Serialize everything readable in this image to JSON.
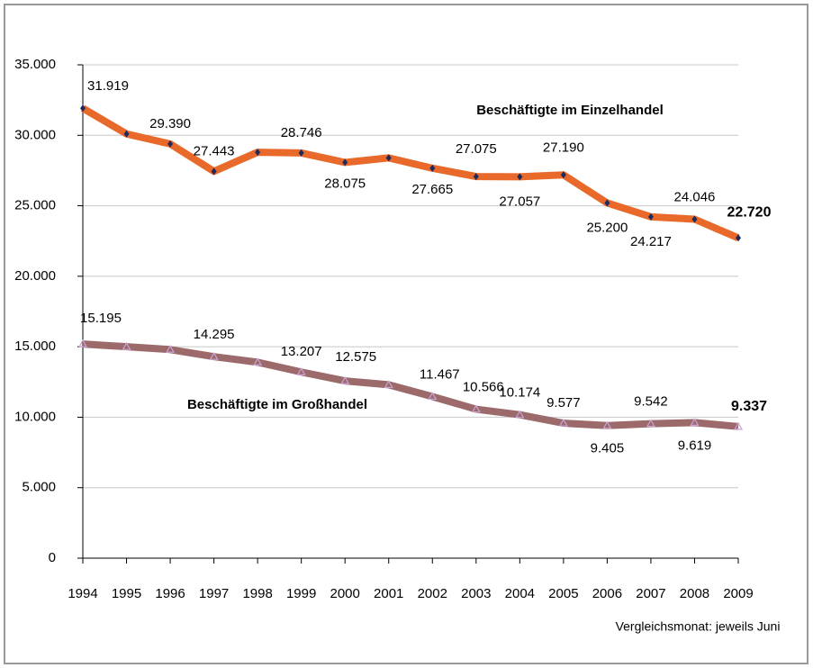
{
  "chart_data": {
    "type": "line",
    "x": [
      "1994",
      "1995",
      "1996",
      "1997",
      "1998",
      "1999",
      "2000",
      "2001",
      "2002",
      "2003",
      "2004",
      "2005",
      "2006",
      "2007",
      "2008",
      "2009"
    ],
    "series": [
      {
        "name": "Beschäftigte im Einzelhandel",
        "color": "#e8692a",
        "marker_color": "#1f2a5c",
        "values": [
          31919,
          30100,
          29390,
          27443,
          28800,
          28746,
          28075,
          28400,
          27665,
          27075,
          27057,
          27190,
          25200,
          24217,
          24046,
          22720
        ],
        "value_labels": [
          "31.919",
          null,
          "29.390",
          "27.443",
          null,
          "28.746",
          "28.075",
          null,
          "27.665",
          "27.075",
          "27.057",
          "27.190",
          "25.200",
          "24.217",
          "24.046",
          "22.720"
        ]
      },
      {
        "name": "Beschäftigte im Großhandel",
        "color": "#9c6a6a",
        "marker_color": "#c9a3d6",
        "values": [
          15195,
          15000,
          14800,
          14295,
          13900,
          13207,
          12575,
          12300,
          11467,
          10566,
          10174,
          9577,
          9405,
          9542,
          9619,
          9337
        ],
        "value_labels": [
          "15.195",
          null,
          null,
          "14.295",
          null,
          "13.207",
          "12.575",
          null,
          "11.467",
          "10.566",
          "10.174",
          "9.577",
          "9.405",
          "9.542",
          "9.619",
          "9.337"
        ]
      }
    ],
    "ylim": [
      0,
      35000
    ],
    "yticks": [
      0,
      {
        "value": 5000,
        "label": "5.000"
      },
      {
        "value": 10000,
        "label": "10.000"
      },
      {
        "value": 15000,
        "label": "15.000"
      },
      {
        "value": 20000,
        "label": "20.000"
      },
      {
        "value": 25000,
        "label": "25.000"
      },
      {
        "value": 30000,
        "label": "30.000"
      },
      {
        "value": 35000,
        "label": "35.000"
      }
    ],
    "grid": true,
    "note": "Vergleichsmonat:  jeweils Juni"
  }
}
